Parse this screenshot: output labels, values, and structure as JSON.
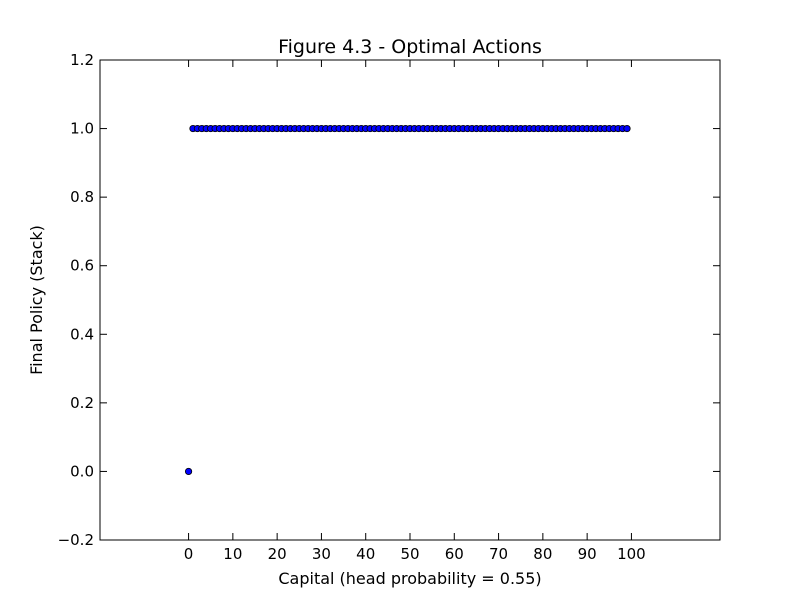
{
  "chart_data": {
    "type": "scatter",
    "title": "Figure 4.3 - Optimal Actions",
    "xlabel": "Capital (head probability = 0.55)",
    "ylabel": "Final Policy (Stack)",
    "xlim": [
      -20,
      120
    ],
    "ylim": [
      -0.2,
      1.2
    ],
    "xticks": [
      0,
      10,
      20,
      30,
      40,
      50,
      60,
      70,
      80,
      90,
      100
    ],
    "xtick_labels": [
      "0",
      "10",
      "20",
      "30",
      "40",
      "50",
      "60",
      "70",
      "80",
      "90",
      "100"
    ],
    "yticks": [
      -0.2,
      0.0,
      0.2,
      0.4,
      0.6,
      0.8,
      1.0,
      1.2
    ],
    "ytick_labels": [
      "−0.2",
      "0.0",
      "0.2",
      "0.4",
      "0.6",
      "0.8",
      "1.0",
      "1.2"
    ],
    "grid": false,
    "legend": "none",
    "marker_color": "#0000ff",
    "marker_edge_color": "#000000",
    "series": [
      {
        "x": [
          0,
          1,
          2,
          3,
          4,
          5,
          6,
          7,
          8,
          9,
          10,
          11,
          12,
          13,
          14,
          15,
          16,
          17,
          18,
          19,
          20,
          21,
          22,
          23,
          24,
          25,
          26,
          27,
          28,
          29,
          30,
          31,
          32,
          33,
          34,
          35,
          36,
          37,
          38,
          39,
          40,
          41,
          42,
          43,
          44,
          45,
          46,
          47,
          48,
          49,
          50,
          51,
          52,
          53,
          54,
          55,
          56,
          57,
          58,
          59,
          60,
          61,
          62,
          63,
          64,
          65,
          66,
          67,
          68,
          69,
          70,
          71,
          72,
          73,
          74,
          75,
          76,
          77,
          78,
          79,
          80,
          81,
          82,
          83,
          84,
          85,
          86,
          87,
          88,
          89,
          90,
          91,
          92,
          93,
          94,
          95,
          96,
          97,
          98,
          99
        ],
        "y": [
          0,
          1,
          1,
          1,
          1,
          1,
          1,
          1,
          1,
          1,
          1,
          1,
          1,
          1,
          1,
          1,
          1,
          1,
          1,
          1,
          1,
          1,
          1,
          1,
          1,
          1,
          1,
          1,
          1,
          1,
          1,
          1,
          1,
          1,
          1,
          1,
          1,
          1,
          1,
          1,
          1,
          1,
          1,
          1,
          1,
          1,
          1,
          1,
          1,
          1,
          1,
          1,
          1,
          1,
          1,
          1,
          1,
          1,
          1,
          1,
          1,
          1,
          1,
          1,
          1,
          1,
          1,
          1,
          1,
          1,
          1,
          1,
          1,
          1,
          1,
          1,
          1,
          1,
          1,
          1,
          1,
          1,
          1,
          1,
          1,
          1,
          1,
          1,
          1,
          1,
          1,
          1,
          1,
          1,
          1,
          1,
          1,
          1,
          1,
          1
        ]
      }
    ]
  }
}
